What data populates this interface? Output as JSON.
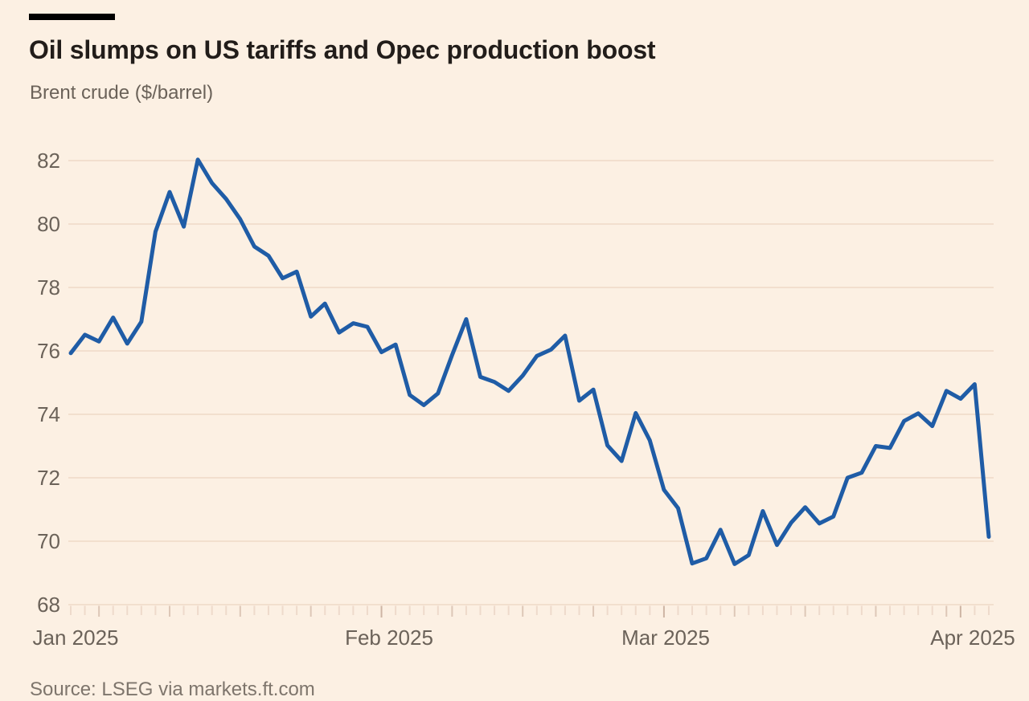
{
  "header": {
    "title": "Oil slumps on US tariffs and Opec production boost",
    "subtitle": "Brent crude ($/barrel)"
  },
  "source_label": "Source: LSEG via markets.ft.com",
  "colors": {
    "background": "#fcf0e3",
    "line": "#1f5ca6",
    "grid": "#f2dfce",
    "axis_text": "#6b6259",
    "title_text": "#221d1a",
    "source_text": "#7e756c",
    "tick_minor": "#eedacb",
    "tick_week": "#ddc7b7",
    "tick_month": "#cdb5a4",
    "accent_bar": "#000000"
  },
  "chart_data": {
    "type": "line",
    "title": "Oil slumps on US tariffs and Opec production boost",
    "subtitle": "Brent crude ($/barrel)",
    "series_name": "Brent crude",
    "unit": "$/barrel",
    "source": "Source: LSEG via markets.ft.com",
    "x": [
      "2025-01-02",
      "2025-01-03",
      "2025-01-06",
      "2025-01-07",
      "2025-01-08",
      "2025-01-09",
      "2025-01-10",
      "2025-01-13",
      "2025-01-14",
      "2025-01-15",
      "2025-01-16",
      "2025-01-17",
      "2025-01-20",
      "2025-01-21",
      "2025-01-22",
      "2025-01-23",
      "2025-01-24",
      "2025-01-27",
      "2025-01-28",
      "2025-01-29",
      "2025-01-30",
      "2025-01-31",
      "2025-02-03",
      "2025-02-04",
      "2025-02-05",
      "2025-02-06",
      "2025-02-07",
      "2025-02-10",
      "2025-02-11",
      "2025-02-12",
      "2025-02-13",
      "2025-02-14",
      "2025-02-17",
      "2025-02-18",
      "2025-02-19",
      "2025-02-20",
      "2025-02-21",
      "2025-02-24",
      "2025-02-25",
      "2025-02-26",
      "2025-02-27",
      "2025-02-28",
      "2025-03-03",
      "2025-03-04",
      "2025-03-05",
      "2025-03-06",
      "2025-03-07",
      "2025-03-10",
      "2025-03-11",
      "2025-03-12",
      "2025-03-13",
      "2025-03-14",
      "2025-03-17",
      "2025-03-18",
      "2025-03-19",
      "2025-03-20",
      "2025-03-21",
      "2025-03-24",
      "2025-03-25",
      "2025-03-26",
      "2025-03-27",
      "2025-03-28",
      "2025-03-31",
      "2025-04-01",
      "2025-04-02",
      "2025-04-03"
    ],
    "values": [
      75.93,
      76.51,
      76.3,
      77.05,
      76.23,
      76.92,
      79.76,
      81.01,
      79.92,
      82.03,
      81.29,
      80.79,
      80.15,
      79.29,
      79.0,
      78.29,
      78.5,
      77.08,
      77.49,
      76.58,
      76.87,
      76.76,
      75.96,
      76.2,
      74.61,
      74.29,
      74.66,
      75.87,
      77.0,
      75.18,
      75.02,
      74.74,
      75.22,
      75.84,
      76.04,
      76.48,
      74.43,
      74.78,
      73.02,
      72.53,
      74.04,
      73.18,
      71.62,
      71.04,
      69.3,
      69.46,
      70.36,
      69.28,
      69.56,
      70.95,
      69.88,
      70.58,
      71.07,
      70.56,
      70.78,
      72.0,
      72.16,
      73.0,
      72.94,
      73.79,
      74.03,
      73.63,
      74.74,
      74.49,
      74.95,
      70.14
    ],
    "y_ticks": [
      82,
      80,
      78,
      76,
      74,
      72,
      70,
      68
    ],
    "ylim": [
      68,
      82
    ],
    "x_labels": [
      "Jan 2025",
      "Feb 2025",
      "Mar 2025",
      "Apr 2025"
    ],
    "x_label_indices": [
      0,
      22,
      42,
      63
    ],
    "week_start_indices": [
      2,
      7,
      12,
      17,
      22,
      27,
      32,
      37,
      42,
      47,
      52,
      57,
      62
    ],
    "month_start_indices": [
      22,
      42,
      63
    ],
    "grid": true,
    "legend": "none"
  }
}
